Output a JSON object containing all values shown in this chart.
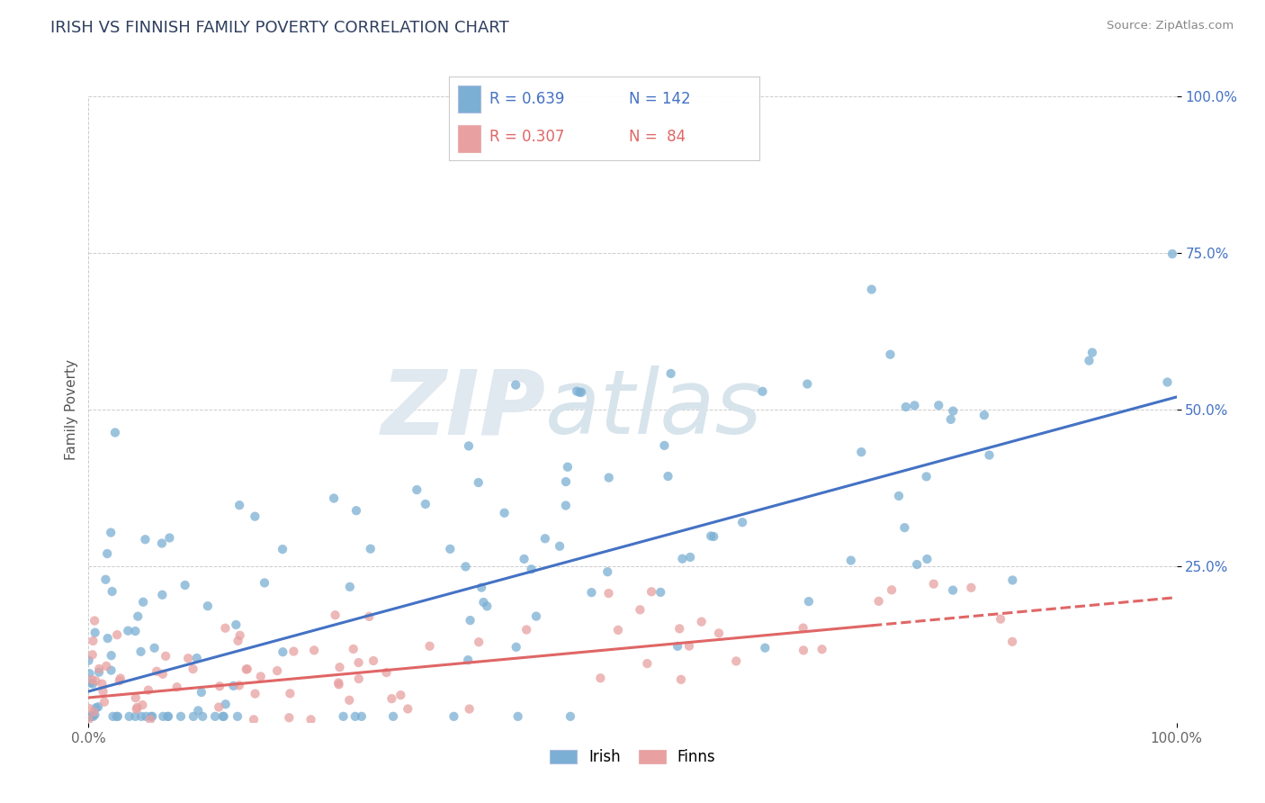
{
  "title": "IRISH VS FINNISH FAMILY POVERTY CORRELATION CHART",
  "source": "Source: ZipAtlas.com",
  "ylabel": "Family Poverty",
  "xlim": [
    0.0,
    1.0
  ],
  "ylim": [
    0.0,
    1.0
  ],
  "x_tick_labels": [
    "0.0%",
    "100.0%"
  ],
  "y_tick_labels": [
    "25.0%",
    "50.0%",
    "75.0%",
    "100.0%"
  ],
  "y_tick_positions": [
    0.25,
    0.5,
    0.75,
    1.0
  ],
  "irish_color": "#7bafd4",
  "finns_color": "#e8a0a0",
  "irish_line_color": "#4472c4",
  "finns_line_color": "#e06666",
  "legend_irish_R": "0.639",
  "legend_irish_N": "142",
  "legend_finns_R": "0.307",
  "legend_finns_N": "84",
  "irish_line_x0": 0.0,
  "irish_line_y0": 0.05,
  "irish_line_x1": 1.0,
  "irish_line_y1": 0.52,
  "finns_line_x0": 0.0,
  "finns_line_y0": 0.04,
  "finns_line_x1": 1.0,
  "finns_line_y1": 0.2
}
